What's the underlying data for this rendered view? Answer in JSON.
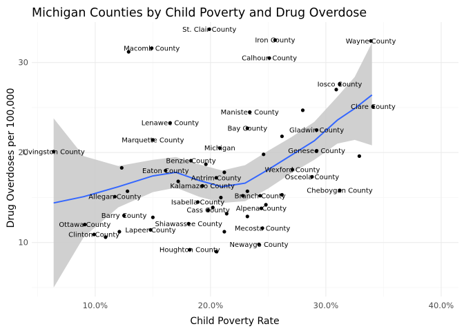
{
  "chart_data": {
    "type": "scatter",
    "title": "Michigan Counties by Child Poverty and Drug Overdose",
    "xlabel": "Child Poverty Rate",
    "ylabel": "Drug Overdoses per 100,000",
    "xlim": [
      0.045,
      0.415
    ],
    "ylim": [
      4,
      34.5
    ],
    "x_ticks": [
      0.1,
      0.2,
      0.3,
      0.4
    ],
    "x_tick_labels": [
      "10.0%",
      "20.0%",
      "30.0%",
      "40.0%"
    ],
    "y_ticks": [
      10,
      20,
      30
    ],
    "y_tick_labels": [
      "10",
      "20",
      "30"
    ],
    "grid": true,
    "legend": "none",
    "colors": {
      "point": "#000000",
      "trend": "#3366ff",
      "ribbon": "#c8c8c8"
    },
    "points": [
      {
        "label": "St. Clair County",
        "x": 0.199,
        "y": 33.7
      },
      {
        "label": "Iron County",
        "x": 0.256,
        "y": 32.5
      },
      {
        "label": "Wayne County",
        "x": 0.339,
        "y": 32.4
      },
      {
        "label": "Macomb County",
        "x": 0.149,
        "y": 31.6
      },
      {
        "label": "",
        "x": 0.129,
        "y": 31.2
      },
      {
        "label": "Calhoun County",
        "x": 0.251,
        "y": 30.5
      },
      {
        "label": "Iosco County",
        "x": 0.312,
        "y": 27.6
      },
      {
        "label": "",
        "x": 0.309,
        "y": 27.0
      },
      {
        "label": "Clare County",
        "x": 0.341,
        "y": 25.1
      },
      {
        "label": "",
        "x": 0.28,
        "y": 24.7
      },
      {
        "label": "Manistee County",
        "x": 0.234,
        "y": 24.5
      },
      {
        "label": "Lenawee County",
        "x": 0.165,
        "y": 23.3
      },
      {
        "label": "Bay County",
        "x": 0.232,
        "y": 22.7
      },
      {
        "label": "Gladwin County",
        "x": 0.292,
        "y": 22.5
      },
      {
        "label": "",
        "x": 0.262,
        "y": 21.8
      },
      {
        "label": "Marquette County",
        "x": 0.15,
        "y": 21.4
      },
      {
        "label": "Michigan",
        "x": 0.208,
        "y": 20.5
      },
      {
        "label": "Livingston County",
        "x": 0.064,
        "y": 20.1
      },
      {
        "label": "Genesee County",
        "x": 0.292,
        "y": 20.2
      },
      {
        "label": "",
        "x": 0.246,
        "y": 19.8
      },
      {
        "label": "",
        "x": 0.329,
        "y": 19.6
      },
      {
        "label": "Benzie County",
        "x": 0.183,
        "y": 19.1
      },
      {
        "label": "",
        "x": 0.196,
        "y": 18.7
      },
      {
        "label": "",
        "x": 0.123,
        "y": 18.3
      },
      {
        "label": "Eaton County",
        "x": 0.161,
        "y": 18.0
      },
      {
        "label": "Wexford County",
        "x": 0.271,
        "y": 18.1
      },
      {
        "label": "",
        "x": 0.212,
        "y": 17.8
      },
      {
        "label": "Osceola County",
        "x": 0.288,
        "y": 17.3
      },
      {
        "label": "Antrim County",
        "x": 0.205,
        "y": 17.2
      },
      {
        "label": "",
        "x": 0.172,
        "y": 16.8
      },
      {
        "label": "Kalamazoo County",
        "x": 0.193,
        "y": 16.3
      },
      {
        "label": "Cheboygan County",
        "x": 0.312,
        "y": 15.8
      },
      {
        "label": "",
        "x": 0.128,
        "y": 15.7
      },
      {
        "label": "",
        "x": 0.232,
        "y": 15.7
      },
      {
        "label": "Allegan County",
        "x": 0.117,
        "y": 15.1
      },
      {
        "label": "Branch County",
        "x": 0.243,
        "y": 15.2
      },
      {
        "label": "",
        "x": 0.228,
        "y": 15.2
      },
      {
        "label": "",
        "x": 0.262,
        "y": 15.3
      },
      {
        "label": "",
        "x": 0.209,
        "y": 15.0
      },
      {
        "label": "Isabella County",
        "x": 0.189,
        "y": 14.5
      },
      {
        "label": "",
        "x": 0.248,
        "y": 14.2
      },
      {
        "label": "Alpena County",
        "x": 0.244,
        "y": 13.8
      },
      {
        "label": "",
        "x": 0.202,
        "y": 13.9
      },
      {
        "label": "Cass County",
        "x": 0.198,
        "y": 13.6
      },
      {
        "label": "",
        "x": 0.214,
        "y": 13.2
      },
      {
        "label": "Barry County",
        "x": 0.125,
        "y": 13.0
      },
      {
        "label": "",
        "x": 0.15,
        "y": 12.8
      },
      {
        "label": "",
        "x": 0.232,
        "y": 12.9
      },
      {
        "label": "Shiawassee County",
        "x": 0.181,
        "y": 12.1
      },
      {
        "label": "Ottawa County",
        "x": 0.091,
        "y": 12.0
      },
      {
        "label": "Mecosta County",
        "x": 0.245,
        "y": 11.6
      },
      {
        "label": "Lapeer County",
        "x": 0.148,
        "y": 11.4
      },
      {
        "label": "",
        "x": 0.121,
        "y": 11.2
      },
      {
        "label": "",
        "x": 0.212,
        "y": 11.2
      },
      {
        "label": "Clinton County",
        "x": 0.099,
        "y": 10.9
      },
      {
        "label": "",
        "x": 0.109,
        "y": 10.6
      },
      {
        "label": "Newaygo County",
        "x": 0.242,
        "y": 9.8
      },
      {
        "label": "Houghton County",
        "x": 0.182,
        "y": 9.2
      },
      {
        "label": "",
        "x": 0.205,
        "y": 9.0
      }
    ],
    "trend": {
      "method": "loess",
      "x": [
        0.064,
        0.09,
        0.12,
        0.15,
        0.17,
        0.19,
        0.21,
        0.23,
        0.25,
        0.27,
        0.29,
        0.31,
        0.325,
        0.34
      ],
      "y": [
        14.4,
        15.1,
        16.2,
        17.4,
        17.8,
        16.9,
        16.2,
        16.6,
        18.1,
        19.7,
        21.3,
        23.6,
        24.9,
        26.4
      ],
      "lower": [
        5.0,
        10.6,
        13.9,
        15.6,
        16.1,
        15.1,
        14.4,
        14.6,
        16.0,
        17.7,
        19.2,
        21.0,
        21.4,
        20.8
      ],
      "upper": [
        23.8,
        19.6,
        18.5,
        19.2,
        19.5,
        18.7,
        18.0,
        18.6,
        20.2,
        21.7,
        23.4,
        26.2,
        28.4,
        32.2
      ]
    }
  }
}
